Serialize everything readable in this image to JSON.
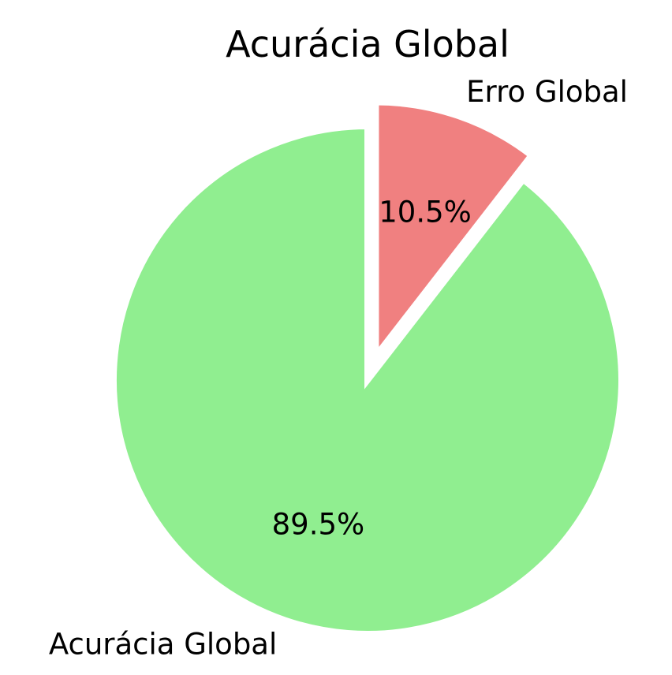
{
  "chart_data": {
    "type": "pie",
    "title": "Acurácia Global",
    "start_angle_deg": 90,
    "direction": "clockwise",
    "slices": [
      {
        "label": "Erro Global",
        "value": 10.5,
        "pct_text": "10.5%",
        "color": "#f08080",
        "exploded": true
      },
      {
        "label": "Acurácia Global",
        "value": 89.5,
        "pct_text": "89.5%",
        "color": "#90ee90",
        "exploded": false
      }
    ]
  }
}
